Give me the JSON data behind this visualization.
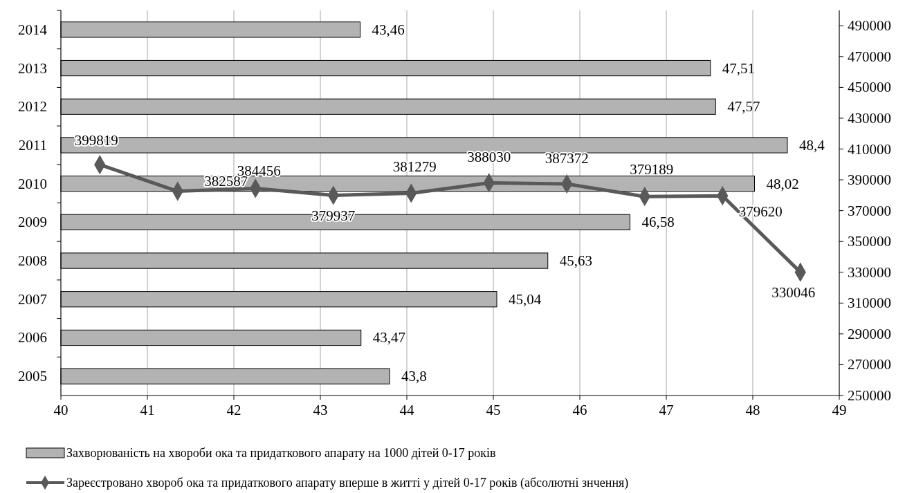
{
  "chart_data": [
    {
      "type": "bar",
      "orientation": "horizontal",
      "categories": [
        "2014",
        "2013",
        "2012",
        "2011",
        "2010",
        "2009",
        "2008",
        "2007",
        "2006",
        "2005"
      ],
      "xlim": [
        40,
        49
      ],
      "xticks": [
        40,
        41,
        42,
        43,
        44,
        45,
        46,
        47,
        48,
        49
      ],
      "grid": "x",
      "legend": "bottom",
      "series": [
        {
          "name": "Захворюваність на хвороби ока та придаткового апарату на 1000 дітей 0-17 років",
          "color": "#b3b3b3",
          "values": [
            43.46,
            47.51,
            47.57,
            48.4,
            48.02,
            46.58,
            45.63,
            45.04,
            43.47,
            43.8
          ],
          "value_labels": [
            "43,46",
            "47,51",
            "47,57",
            "48,4",
            "48,02",
            "46,58",
            "45,63",
            "45,04",
            "43,47",
            "43,8"
          ]
        }
      ]
    },
    {
      "type": "line",
      "categories": [
        null,
        null,
        null,
        null,
        null,
        null,
        null,
        null,
        null,
        null
      ],
      "ylim": [
        250000,
        500000
      ],
      "yticks": [
        250000,
        270000,
        290000,
        310000,
        330000,
        350000,
        370000,
        390000,
        410000,
        430000,
        450000,
        470000,
        490000
      ],
      "tick_labels": "y",
      "legend": "bottom",
      "marker": "diamond",
      "line_style": "solid",
      "series": [
        {
          "name": "Зареєстровано хвороб ока та придаткового апарату вперше в житті у дітей 0-17 років (абсолютні знчення)",
          "color": "#595959",
          "values": [
            399819,
            382587,
            384456,
            379937,
            381279,
            388030,
            387372,
            379189,
            379620,
            330046
          ],
          "value_labels": [
            "399819",
            "382587",
            "384456",
            "379937",
            "381279",
            "388030",
            "387372",
            "379189",
            "379620",
            "330046"
          ]
        }
      ]
    }
  ]
}
